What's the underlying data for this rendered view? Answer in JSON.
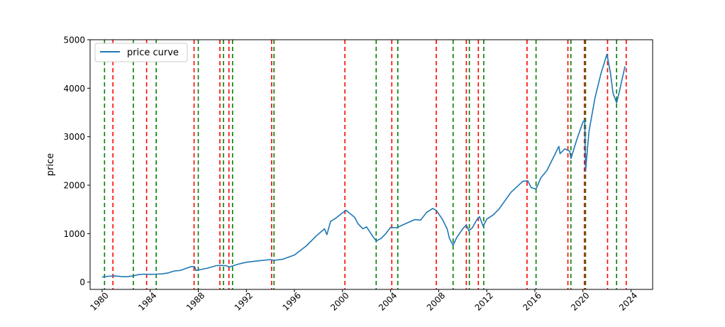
{
  "chart_data": {
    "type": "line",
    "title": "",
    "xlabel": "",
    "ylabel": "price",
    "xlim": [
      1979.0,
      2025.8
    ],
    "ylim": [
      -150,
      5000
    ],
    "x_ticks": [
      "1980",
      "1984",
      "1988",
      "1992",
      "1996",
      "2000",
      "2004",
      "2008",
      "2012",
      "2016",
      "2020",
      "2024"
    ],
    "y_ticks": [
      "0",
      "1000",
      "2000",
      "3000",
      "4000",
      "5000"
    ],
    "grid": false,
    "legend_placement": "upper-left",
    "series": [
      {
        "name": "price curve",
        "color": "#1f77b4",
        "x": [
          1980.0,
          1980.5,
          1981.0,
          1981.5,
          1982.0,
          1982.6,
          1983.0,
          1983.5,
          1984.0,
          1984.5,
          1985.0,
          1985.5,
          1986.0,
          1986.5,
          1987.0,
          1987.4,
          1987.7,
          1987.8,
          1988.2,
          1988.8,
          1989.5,
          1989.8,
          1990.3,
          1990.6,
          1990.8,
          1991.3,
          1992.0,
          1993.0,
          1994.0,
          1994.3,
          1995.0,
          1996.0,
          1997.0,
          1997.8,
          1998.5,
          1998.7,
          1999.0,
          1999.5,
          2000.0,
          2000.3,
          2000.7,
          2001.0,
          2001.3,
          2001.7,
          2002.0,
          2002.5,
          2002.8,
          2003.2,
          2003.6,
          2004.0,
          2004.5,
          2005.0,
          2006.0,
          2006.5,
          2007.0,
          2007.5,
          2007.8,
          2008.3,
          2008.7,
          2008.9,
          2009.2,
          2009.5,
          2010.0,
          2010.3,
          2010.5,
          2010.8,
          2011.2,
          2011.4,
          2011.7,
          2012.0,
          2012.5,
          2013.0,
          2014.0,
          2015.0,
          2015.4,
          2015.7,
          2016.1,
          2016.5,
          2017.0,
          2018.0,
          2018.1,
          2018.5,
          2018.9,
          2019.0,
          2019.5,
          2020.0,
          2020.15,
          2020.22,
          2020.5,
          2021.0,
          2021.5,
          2022.0,
          2022.3,
          2022.5,
          2022.8,
          2023.0,
          2023.5
        ],
        "values": [
          105,
          120,
          130,
          118,
          110,
          130,
          155,
          165,
          160,
          165,
          170,
          190,
          230,
          240,
          285,
          320,
          320,
          240,
          260,
          290,
          340,
          345,
          340,
          310,
          330,
          370,
          410,
          440,
          465,
          450,
          470,
          560,
          750,
          950,
          1100,
          980,
          1250,
          1330,
          1430,
          1480,
          1400,
          1340,
          1200,
          1100,
          1140,
          950,
          850,
          900,
          1000,
          1130,
          1120,
          1180,
          1290,
          1280,
          1440,
          1520,
          1480,
          1300,
          1100,
          900,
          760,
          920,
          1100,
          1180,
          1060,
          1120,
          1300,
          1350,
          1150,
          1300,
          1380,
          1500,
          1850,
          2080,
          2090,
          1950,
          1920,
          2150,
          2300,
          2800,
          2650,
          2750,
          2700,
          2550,
          2950,
          3300,
          3350,
          2300,
          3100,
          3800,
          4300,
          4700,
          4300,
          3900,
          3700,
          3900,
          4450
        ]
      }
    ],
    "vertical_lines": [
      {
        "x": 1980.2,
        "color": "#008000",
        "style": "dashed"
      },
      {
        "x": 1980.9,
        "color": "#ff0000",
        "style": "dashed"
      },
      {
        "x": 1982.6,
        "color": "#008000",
        "style": "dashed"
      },
      {
        "x": 1983.7,
        "color": "#ff0000",
        "style": "dashed"
      },
      {
        "x": 1984.5,
        "color": "#008000",
        "style": "dashed"
      },
      {
        "x": 1987.65,
        "color": "#ff0000",
        "style": "dashed"
      },
      {
        "x": 1988.0,
        "color": "#008000",
        "style": "dashed"
      },
      {
        "x": 1989.8,
        "color": "#ff0000",
        "style": "dashed"
      },
      {
        "x": 1990.1,
        "color": "#008000",
        "style": "dashed"
      },
      {
        "x": 1990.55,
        "color": "#ff0000",
        "style": "dashed"
      },
      {
        "x": 1990.85,
        "color": "#008000",
        "style": "dashed"
      },
      {
        "x": 1994.1,
        "color": "#ff0000",
        "style": "dashed"
      },
      {
        "x": 1994.3,
        "color": "#008000",
        "style": "dashed"
      },
      {
        "x": 2000.2,
        "color": "#ff0000",
        "style": "dashed"
      },
      {
        "x": 2002.8,
        "color": "#008000",
        "style": "dashed"
      },
      {
        "x": 2004.1,
        "color": "#ff0000",
        "style": "dashed"
      },
      {
        "x": 2004.6,
        "color": "#008000",
        "style": "dashed"
      },
      {
        "x": 2007.8,
        "color": "#ff0000",
        "style": "dashed"
      },
      {
        "x": 2009.2,
        "color": "#008000",
        "style": "dashed"
      },
      {
        "x": 2010.3,
        "color": "#ff0000",
        "style": "dashed"
      },
      {
        "x": 2010.55,
        "color": "#008000",
        "style": "dashed"
      },
      {
        "x": 2011.3,
        "color": "#ff0000",
        "style": "dashed"
      },
      {
        "x": 2011.75,
        "color": "#008000",
        "style": "dashed"
      },
      {
        "x": 2015.35,
        "color": "#ff0000",
        "style": "dashed"
      },
      {
        "x": 2016.1,
        "color": "#008000",
        "style": "dashed"
      },
      {
        "x": 2018.75,
        "color": "#ff0000",
        "style": "dashed"
      },
      {
        "x": 2019.0,
        "color": "#008000",
        "style": "dashed"
      },
      {
        "x": 2020.12,
        "color": "#ff0000",
        "style": "dashed"
      },
      {
        "x": 2020.22,
        "color": "#008000",
        "style": "dashed"
      },
      {
        "x": 2022.05,
        "color": "#ff0000",
        "style": "dashed"
      },
      {
        "x": 2022.8,
        "color": "#008000",
        "style": "dashed"
      },
      {
        "x": 2023.6,
        "color": "#ff0000",
        "style": "dashed"
      }
    ]
  }
}
